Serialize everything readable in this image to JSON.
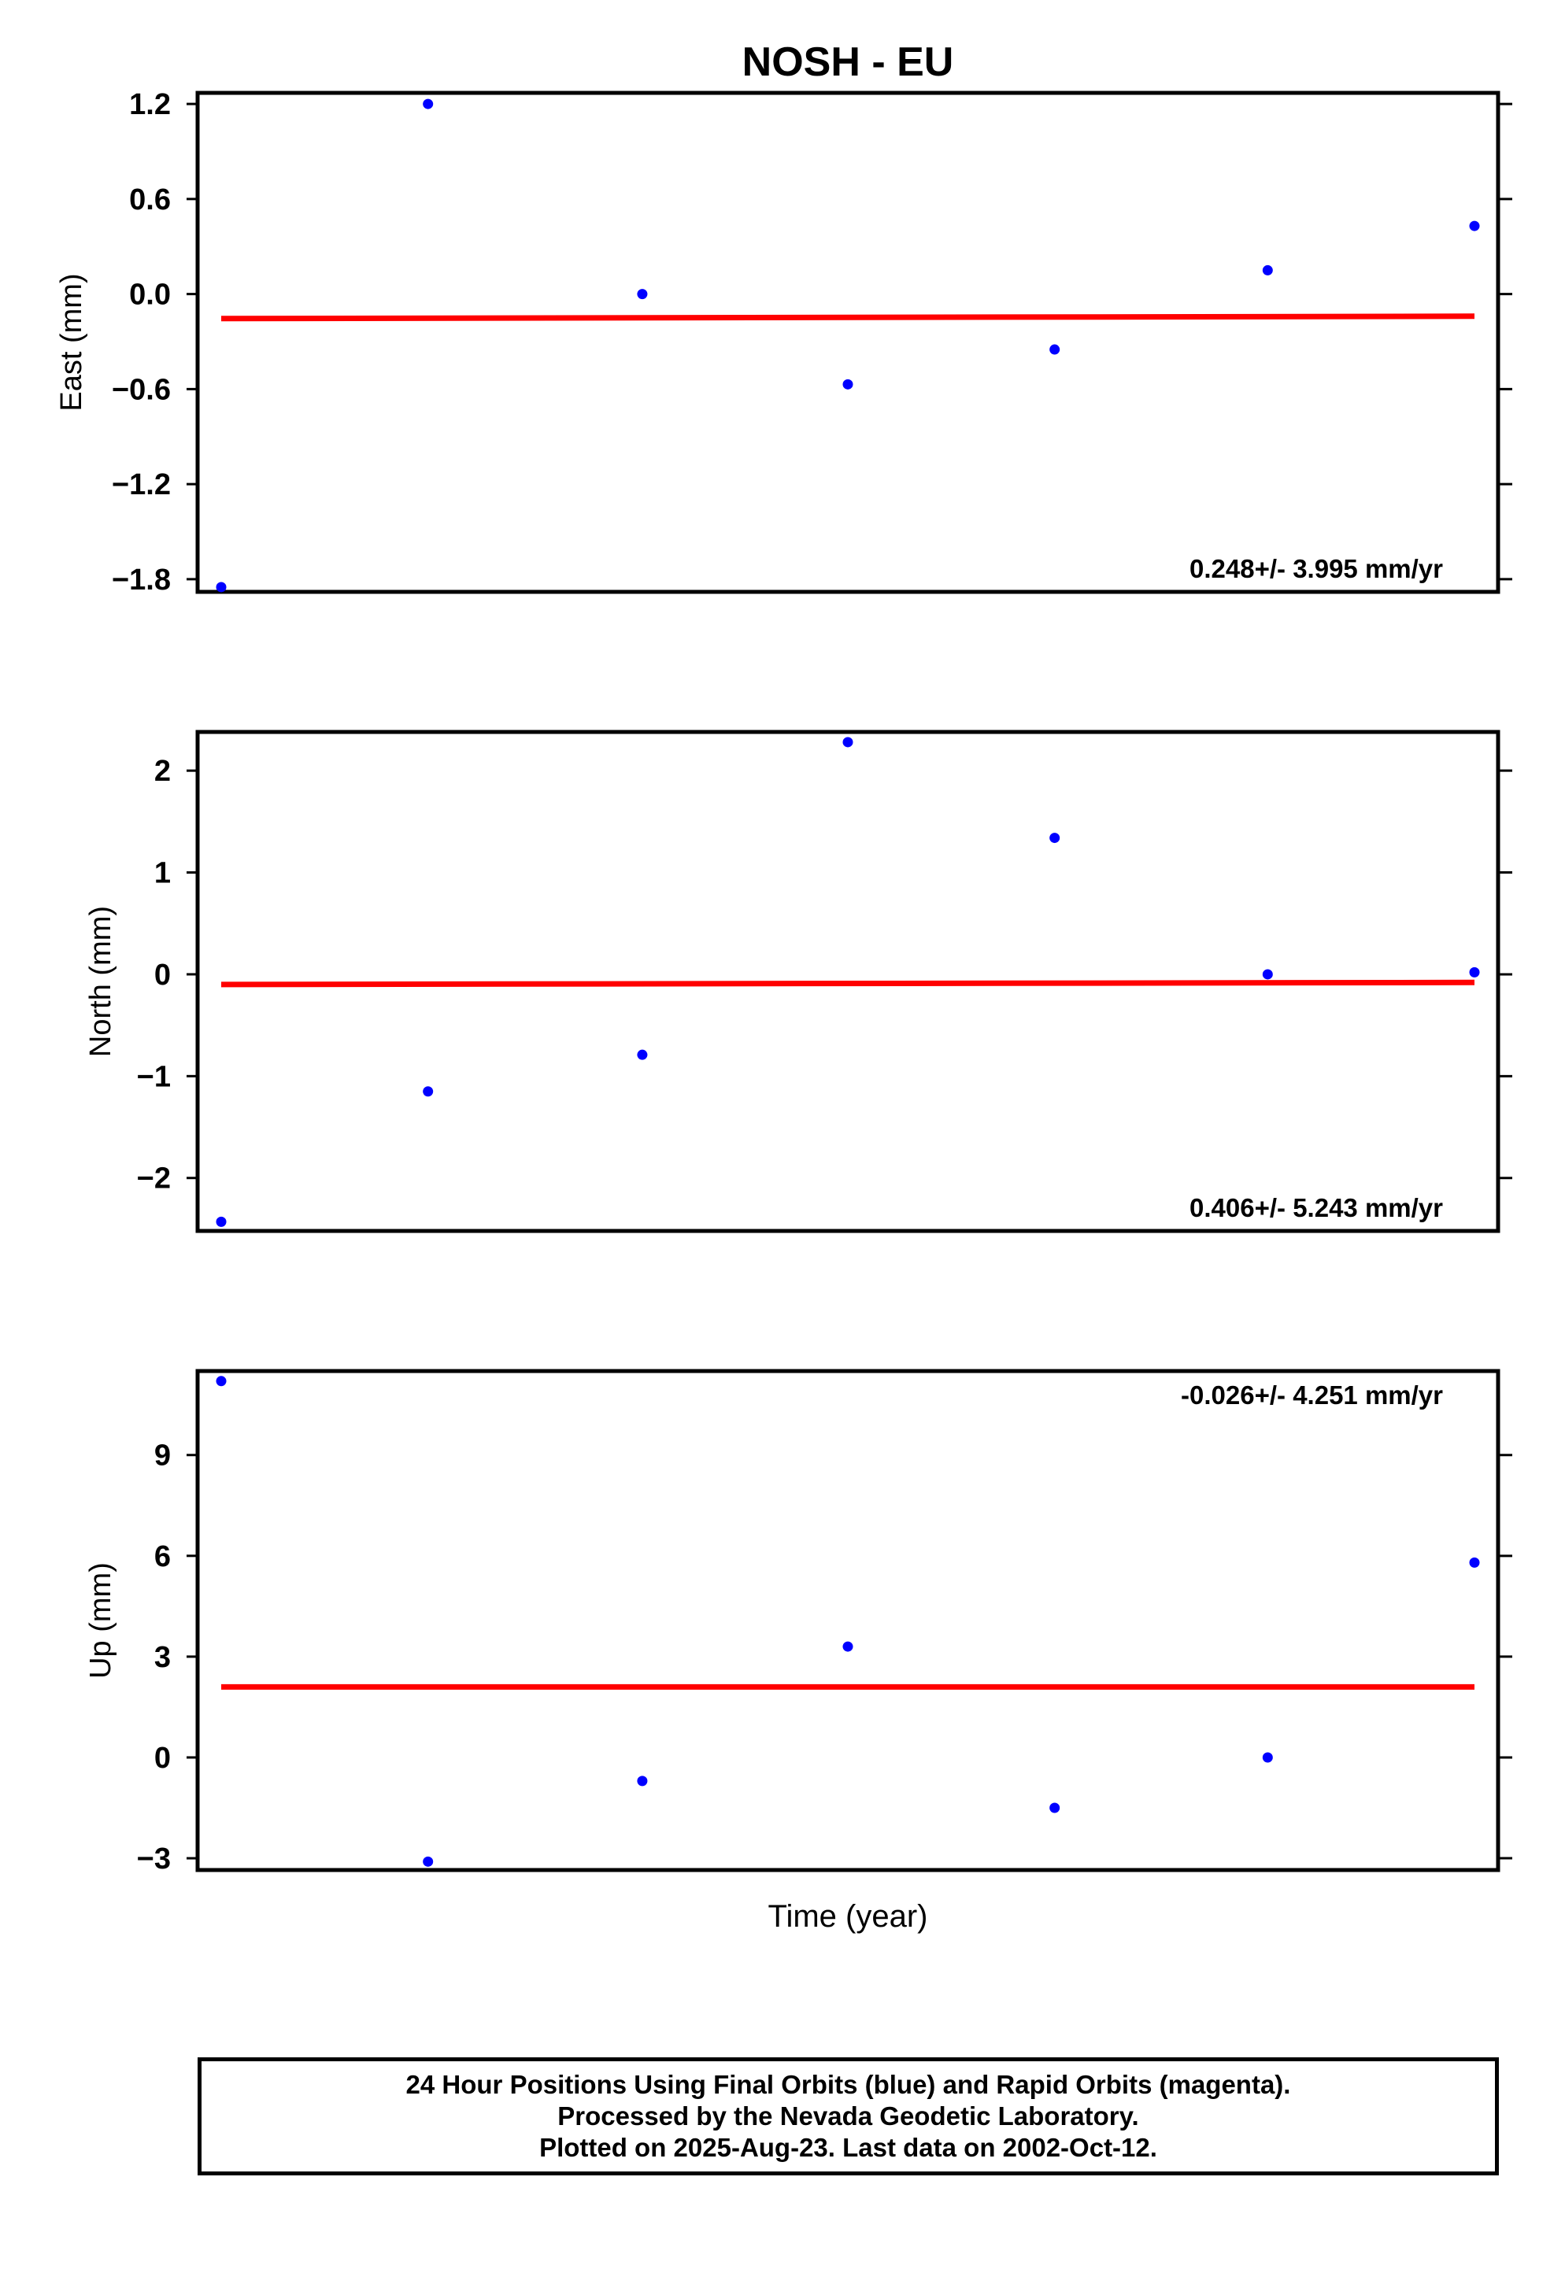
{
  "chart_data": {
    "title": "NOSH - EU",
    "type": "scatter",
    "xlabel": "Time (year)",
    "colors": {
      "points": "#0000ff",
      "trend": "#ff0000",
      "axes": "#000000"
    },
    "panels": [
      {
        "ylabel": "East (mm)",
        "ylim": [
          -1.88,
          1.27
        ],
        "yticks": [
          1.2,
          0.6,
          0.0,
          -0.6,
          -1.2,
          -1.8
        ],
        "ytick_labels": [
          "1.2",
          "0.6",
          "0.0",
          "−0.6",
          "−1.2",
          "−1.8"
        ],
        "rate_label": "0.248+/- 3.995 mm/yr",
        "rate_label_position": "bottom-right",
        "points": [
          {
            "x": 0.0,
            "y": -1.85
          },
          {
            "x": 0.165,
            "y": 1.2
          },
          {
            "x": 0.336,
            "y": 0.0
          },
          {
            "x": 0.5,
            "y": -0.57
          },
          {
            "x": 0.665,
            "y": -0.35
          },
          {
            "x": 0.835,
            "y": 0.15
          },
          {
            "x": 1.0,
            "y": 0.43
          }
        ],
        "trend": {
          "x": [
            0.0,
            1.0
          ],
          "y": [
            -0.155,
            -0.14
          ]
        }
      },
      {
        "ylabel": "North (mm)",
        "ylim": [
          -2.52,
          2.38
        ],
        "yticks": [
          2,
          1,
          0,
          -1,
          -2
        ],
        "ytick_labels": [
          "2",
          "1",
          "0",
          "−1",
          "−2"
        ],
        "rate_label": "0.406+/- 5.243 mm/yr",
        "rate_label_position": "bottom-right",
        "points": [
          {
            "x": 0.0,
            "y": -2.43
          },
          {
            "x": 0.165,
            "y": -1.15
          },
          {
            "x": 0.336,
            "y": -0.79
          },
          {
            "x": 0.5,
            "y": 2.28
          },
          {
            "x": 0.665,
            "y": 1.34
          },
          {
            "x": 0.835,
            "y": 0.0
          },
          {
            "x": 1.0,
            "y": 0.02
          }
        ],
        "trend": {
          "x": [
            0.0,
            1.0
          ],
          "y": [
            -0.1,
            -0.08
          ]
        }
      },
      {
        "ylabel": "Up (mm)",
        "ylim": [
          -3.35,
          11.5
        ],
        "yticks": [
          9,
          6,
          3,
          0,
          -3
        ],
        "ytick_labels": [
          "9",
          "6",
          "3",
          "0",
          "−3"
        ],
        "rate_label": "-0.026+/- 4.251 mm/yr",
        "rate_label_position": "top-right",
        "points": [
          {
            "x": 0.0,
            "y": 11.2
          },
          {
            "x": 0.165,
            "y": -3.1
          },
          {
            "x": 0.336,
            "y": -0.7
          },
          {
            "x": 0.5,
            "y": 3.3
          },
          {
            "x": 0.665,
            "y": -1.5
          },
          {
            "x": 0.835,
            "y": 0.0
          },
          {
            "x": 1.0,
            "y": 5.8
          }
        ],
        "trend": {
          "x": [
            0.0,
            1.0
          ],
          "y": [
            2.1,
            2.1
          ]
        }
      }
    ]
  },
  "caption": {
    "line1": "24 Hour Positions Using Final Orbits (blue) and Rapid Orbits (magenta).",
    "line2": "Processed by the Nevada Geodetic Laboratory.",
    "line3": "Plotted on 2025-Aug-23. Last data on 2002-Oct-12."
  }
}
